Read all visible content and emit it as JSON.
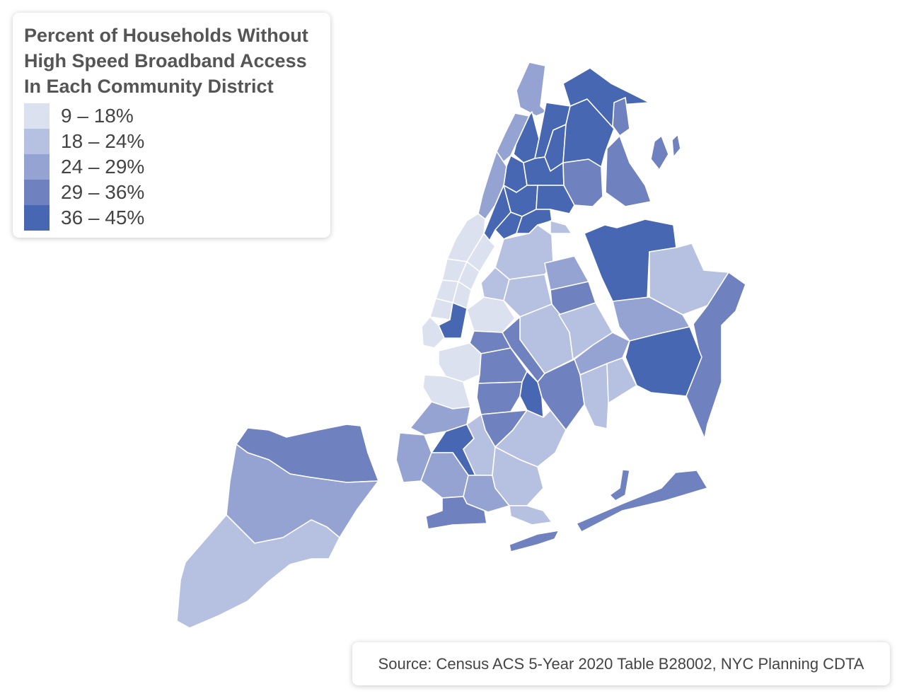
{
  "legend": {
    "title_lines": [
      "Percent of Households Without",
      "High Speed Broadband Access",
      "In Each Community District"
    ],
    "bins": [
      {
        "label": "9 – 18%",
        "color": "#dce1f0"
      },
      {
        "label": "18 – 24%",
        "color": "#b6c0e1"
      },
      {
        "label": "24 – 29%",
        "color": "#95a3d2"
      },
      {
        "label": "29 – 36%",
        "color": "#7081c0"
      },
      {
        "label": "36 – 45%",
        "color": "#4767b2"
      }
    ]
  },
  "source": "Source: Census ACS 5-Year 2020 Table B28002, NYC Planning CDTA",
  "districts": [
    {
      "id": "bronx-riverdale",
      "bin": 2
    },
    {
      "id": "bronx-kingsbridge",
      "bin": 4
    },
    {
      "id": "bronx-fordham",
      "bin": 4
    },
    {
      "id": "bronx-university-heights",
      "bin": 4
    },
    {
      "id": "bronx-bedford-park",
      "bin": 4
    },
    {
      "id": "bronx-belmont",
      "bin": 4
    },
    {
      "id": "bronx-highbridge",
      "bin": 4
    },
    {
      "id": "bronx-morrisania",
      "bin": 4
    },
    {
      "id": "bronx-mott-haven",
      "bin": 4
    },
    {
      "id": "bronx-hunts-point",
      "bin": 4
    },
    {
      "id": "bronx-parkchester",
      "bin": 3
    },
    {
      "id": "bronx-williamsbridge",
      "bin": 4
    },
    {
      "id": "bronx-wakefield",
      "bin": 4
    },
    {
      "id": "bronx-co-op-city",
      "bin": 3
    },
    {
      "id": "bronx-throgs-neck",
      "bin": 3
    },
    {
      "id": "bronx-city-island",
      "bin": 3
    },
    {
      "id": "manhattan-inwood",
      "bin": 2
    },
    {
      "id": "manhattan-washington-heights",
      "bin": 2
    },
    {
      "id": "manhattan-central-harlem",
      "bin": 4
    },
    {
      "id": "manhattan-upper-west-side",
      "bin": 0
    },
    {
      "id": "manhattan-upper-east-side",
      "bin": 0
    },
    {
      "id": "manhattan-midtown-west",
      "bin": 0
    },
    {
      "id": "manhattan-midtown-east",
      "bin": 0
    },
    {
      "id": "manhattan-chelsea",
      "bin": 0
    },
    {
      "id": "manhattan-murray-hill",
      "bin": 0
    },
    {
      "id": "manhattan-village",
      "bin": 0
    },
    {
      "id": "manhattan-lower-east-side",
      "bin": 4
    },
    {
      "id": "manhattan-financial-district",
      "bin": 0
    },
    {
      "id": "queens-astoria",
      "bin": 1
    },
    {
      "id": "queens-long-island-city",
      "bin": 1
    },
    {
      "id": "queens-sunnyside",
      "bin": 1
    },
    {
      "id": "queens-jackson-heights",
      "bin": 2
    },
    {
      "id": "queens-elmhurst",
      "bin": 3
    },
    {
      "id": "queens-flushing",
      "bin": 4
    },
    {
      "id": "queens-bayside",
      "bin": 1
    },
    {
      "id": "queens-queens-village",
      "bin": 3
    },
    {
      "id": "queens-hillcrest",
      "bin": 2
    },
    {
      "id": "queens-ridgewood",
      "bin": 1
    },
    {
      "id": "queens-forest-hills",
      "bin": 1
    },
    {
      "id": "queens-kew-gardens",
      "bin": 2
    },
    {
      "id": "queens-jamaica",
      "bin": 4
    },
    {
      "id": "queens-ozone-park",
      "bin": 1
    },
    {
      "id": "queens-howard-beach",
      "bin": 1
    },
    {
      "id": "queens-rockaway",
      "bin": 3
    },
    {
      "id": "queens-breezy-point",
      "bin": 3
    },
    {
      "id": "queens-rikers",
      "bin": 1
    },
    {
      "id": "brooklyn-greenpoint",
      "bin": 0
    },
    {
      "id": "brooklyn-williamsburg",
      "bin": 3
    },
    {
      "id": "brooklyn-bushwick",
      "bin": 3
    },
    {
      "id": "brooklyn-brooklyn-heights",
      "bin": 0
    },
    {
      "id": "brooklyn-park-slope",
      "bin": 0
    },
    {
      "id": "brooklyn-crown-heights",
      "bin": 3
    },
    {
      "id": "brooklyn-east-new-york",
      "bin": 3
    },
    {
      "id": "brooklyn-brownsville",
      "bin": 4
    },
    {
      "id": "brooklyn-flatbush",
      "bin": 3
    },
    {
      "id": "brooklyn-sunset-park",
      "bin": 2
    },
    {
      "id": "brooklyn-borough-park",
      "bin": 4
    },
    {
      "id": "brooklyn-bay-ridge",
      "bin": 2
    },
    {
      "id": "brooklyn-bensonhurst",
      "bin": 2
    },
    {
      "id": "brooklyn-gravesend",
      "bin": 2
    },
    {
      "id": "brooklyn-coney-island",
      "bin": 3
    },
    {
      "id": "brooklyn-sheepshead-bay",
      "bin": 1
    },
    {
      "id": "brooklyn-flatlands",
      "bin": 1
    },
    {
      "id": "brooklyn-canarsie",
      "bin": 1
    },
    {
      "id": "brooklyn-east-flatbush",
      "bin": 3
    },
    {
      "id": "staten-island-north-shore",
      "bin": 3
    },
    {
      "id": "staten-island-mid-island",
      "bin": 2
    },
    {
      "id": "staten-island-south-shore",
      "bin": 1
    }
  ]
}
